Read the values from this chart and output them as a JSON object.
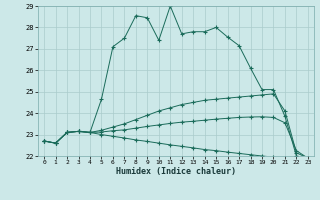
{
  "xlabel": "Humidex (Indice chaleur)",
  "bg_color": "#cce8e8",
  "grid_color": "#aacccc",
  "line_color": "#1a6b5a",
  "xlim": [
    -0.5,
    23.5
  ],
  "ylim": [
    22,
    29
  ],
  "yticks": [
    22,
    23,
    24,
    25,
    26,
    27,
    28,
    29
  ],
  "xticks": [
    0,
    1,
    2,
    3,
    4,
    5,
    6,
    7,
    8,
    9,
    10,
    11,
    12,
    13,
    14,
    15,
    16,
    17,
    18,
    19,
    20,
    21,
    22,
    23
  ],
  "series": [
    {
      "x": [
        0,
        1,
        2,
        3,
        4,
        5,
        6,
        7,
        8,
        9,
        10,
        11,
        12,
        13,
        14,
        15,
        16,
        17,
        18,
        19,
        20,
        21,
        22,
        23
      ],
      "y": [
        22.7,
        22.6,
        23.1,
        23.15,
        23.1,
        24.65,
        27.1,
        27.5,
        28.55,
        28.45,
        27.4,
        29.0,
        27.7,
        27.8,
        27.8,
        28.0,
        27.55,
        27.15,
        26.1,
        25.1,
        25.1,
        23.85,
        22.0,
        21.9
      ]
    },
    {
      "x": [
        0,
        1,
        2,
        3,
        4,
        5,
        6,
        7,
        8,
        9,
        10,
        11,
        12,
        13,
        14,
        15,
        16,
        17,
        18,
        19,
        20,
        21,
        22,
        23
      ],
      "y": [
        22.7,
        22.6,
        23.1,
        23.15,
        23.1,
        23.2,
        23.35,
        23.5,
        23.7,
        23.9,
        24.1,
        24.25,
        24.4,
        24.5,
        24.6,
        24.65,
        24.7,
        24.75,
        24.8,
        24.85,
        24.9,
        24.1,
        22.15,
        21.9
      ]
    },
    {
      "x": [
        0,
        1,
        2,
        3,
        4,
        5,
        6,
        7,
        8,
        9,
        10,
        11,
        12,
        13,
        14,
        15,
        16,
        17,
        18,
        19,
        20,
        21,
        22,
        23
      ],
      "y": [
        22.7,
        22.6,
        23.1,
        23.15,
        23.1,
        23.12,
        23.18,
        23.22,
        23.3,
        23.38,
        23.45,
        23.52,
        23.58,
        23.62,
        23.67,
        23.72,
        23.76,
        23.8,
        23.82,
        23.83,
        23.8,
        23.55,
        22.25,
        21.9
      ]
    },
    {
      "x": [
        0,
        1,
        2,
        3,
        4,
        5,
        6,
        7,
        8,
        9,
        10,
        11,
        12,
        13,
        14,
        15,
        16,
        17,
        18,
        19,
        20,
        21,
        22,
        23
      ],
      "y": [
        22.7,
        22.6,
        23.1,
        23.15,
        23.1,
        23.0,
        22.92,
        22.84,
        22.75,
        22.68,
        22.6,
        22.52,
        22.45,
        22.38,
        22.3,
        22.25,
        22.18,
        22.12,
        22.06,
        22.0,
        21.95,
        21.9,
        21.85,
        21.9
      ]
    }
  ]
}
